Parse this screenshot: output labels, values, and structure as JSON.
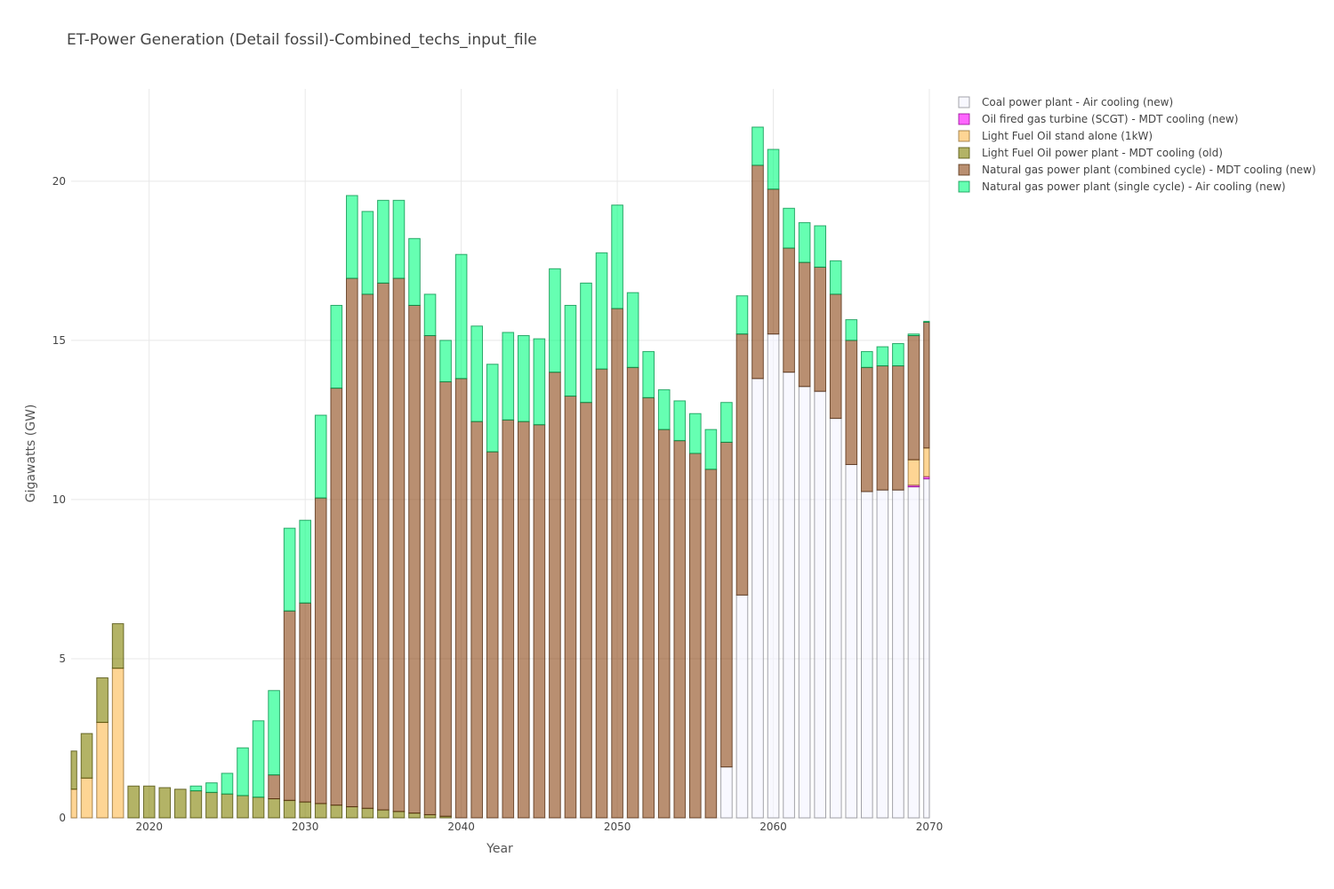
{
  "chart_data": {
    "type": "bar",
    "stacked": true,
    "title": "ET-Power Generation (Detail fossil)-Combined_techs_input_file",
    "xlabel": "Year",
    "ylabel": "Gigawatts (GW)",
    "xlim": [
      2015,
      2070
    ],
    "ylim": [
      0,
      22.9
    ],
    "x_ticks": [
      2020,
      2030,
      2040,
      2050,
      2060,
      2070
    ],
    "y_ticks": [
      0,
      5,
      10,
      15,
      20
    ],
    "grid": true,
    "legend_position": "top-right",
    "x": [
      2015,
      2016,
      2017,
      2018,
      2019,
      2020,
      2021,
      2022,
      2023,
      2024,
      2025,
      2026,
      2027,
      2028,
      2029,
      2030,
      2031,
      2032,
      2033,
      2034,
      2035,
      2036,
      2037,
      2038,
      2039,
      2040,
      2041,
      2042,
      2043,
      2044,
      2045,
      2046,
      2047,
      2048,
      2049,
      2050,
      2051,
      2052,
      2053,
      2054,
      2055,
      2056,
      2057,
      2058,
      2059,
      2060,
      2061,
      2062,
      2063,
      2064,
      2065,
      2066,
      2067,
      2068,
      2069,
      2070
    ],
    "series": [
      {
        "name": "Coal power plant - Air cooling (new)",
        "color": "#f4f3ff",
        "values": [
          0,
          0,
          0,
          0,
          0,
          0,
          0,
          0,
          0,
          0,
          0,
          0,
          0,
          0,
          0,
          0,
          0,
          0,
          0,
          0,
          0,
          0,
          0,
          0,
          0,
          0,
          0,
          0,
          0,
          0,
          0,
          0,
          0,
          0,
          0,
          0,
          0,
          0,
          0,
          0,
          0,
          0,
          1.6,
          7.0,
          13.8,
          15.2,
          14.0,
          13.55,
          13.4,
          12.55,
          11.1,
          10.25,
          10.3,
          10.3,
          10.4,
          10.65
        ]
      },
      {
        "name": "Oil fired gas turbine (SCGT) - MDT cooling (new)",
        "color": "#ff00ff",
        "values": [
          0,
          0,
          0,
          0,
          0,
          0,
          0,
          0,
          0,
          0,
          0,
          0,
          0,
          0,
          0,
          0,
          0,
          0,
          0,
          0,
          0,
          0,
          0,
          0,
          0,
          0,
          0,
          0,
          0,
          0,
          0,
          0,
          0,
          0,
          0,
          0,
          0,
          0,
          0,
          0,
          0,
          0,
          0,
          0,
          0,
          0,
          0,
          0,
          0,
          0,
          0,
          0,
          0,
          0,
          0.05,
          0.07
        ]
      },
      {
        "name": "Light Fuel Oil stand alone (1kW)",
        "color": "#fdb94d",
        "values": [
          0.9,
          1.25,
          3.0,
          4.7,
          0,
          0,
          0,
          0,
          0,
          0,
          0,
          0,
          0,
          0,
          0,
          0,
          0,
          0,
          0,
          0,
          0,
          0,
          0,
          0,
          0,
          0,
          0,
          0,
          0,
          0,
          0,
          0,
          0,
          0,
          0,
          0,
          0,
          0,
          0,
          0,
          0,
          0,
          0,
          0,
          0,
          0,
          0,
          0,
          0,
          0,
          0,
          0,
          0,
          0,
          0.8,
          0.9
        ]
      },
      {
        "name": "Light Fuel Oil power plant - MDT cooling (old)",
        "color": "#808000",
        "values": [
          1.2,
          1.4,
          1.4,
          1.4,
          1.0,
          1.0,
          0.95,
          0.9,
          0.85,
          0.8,
          0.75,
          0.7,
          0.65,
          0.6,
          0.55,
          0.5,
          0.45,
          0.4,
          0.35,
          0.3,
          0.25,
          0.2,
          0.15,
          0.1,
          0.05,
          0,
          0,
          0,
          0,
          0,
          0,
          0,
          0,
          0,
          0,
          0,
          0,
          0,
          0,
          0,
          0,
          0,
          0,
          0,
          0,
          0,
          0,
          0,
          0,
          0,
          0,
          0,
          0,
          0,
          0,
          0
        ]
      },
      {
        "name": "Natural gas power plant (combined cycle) - MDT cooling (new)",
        "color": "#8b4513",
        "values": [
          0,
          0,
          0,
          0,
          0,
          0,
          0,
          0,
          0,
          0,
          0,
          0,
          0,
          0.75,
          5.95,
          6.25,
          9.6,
          13.1,
          16.6,
          16.15,
          16.55,
          16.75,
          15.95,
          15.05,
          13.65,
          13.8,
          12.45,
          11.5,
          12.5,
          12.45,
          12.35,
          14.0,
          13.25,
          13.05,
          14.1,
          16.0,
          14.15,
          13.2,
          12.2,
          11.85,
          11.45,
          10.95,
          10.2,
          8.2,
          6.7,
          4.55,
          3.9,
          3.9,
          3.9,
          3.9,
          3.9,
          3.9,
          3.9,
          3.9,
          3.9,
          3.95
        ]
      },
      {
        "name": "Natural gas power plant (single cycle) - Air cooling (new)",
        "color": "#00ff7f",
        "values": [
          0,
          0,
          0,
          0,
          0,
          0,
          0,
          0,
          0.15,
          0.3,
          0.65,
          1.5,
          2.4,
          2.65,
          2.6,
          2.6,
          2.6,
          2.6,
          2.6,
          2.6,
          2.6,
          2.45,
          2.1,
          1.3,
          1.3,
          3.9,
          3.0,
          2.75,
          2.75,
          2.7,
          2.7,
          3.25,
          2.85,
          3.75,
          3.65,
          3.25,
          2.35,
          1.45,
          1.25,
          1.25,
          1.25,
          1.25,
          1.25,
          1.2,
          1.2,
          1.25,
          1.25,
          1.25,
          1.3,
          1.05,
          0.65,
          0.5,
          0.6,
          0.7,
          0.05,
          0.03
        ]
      }
    ]
  }
}
